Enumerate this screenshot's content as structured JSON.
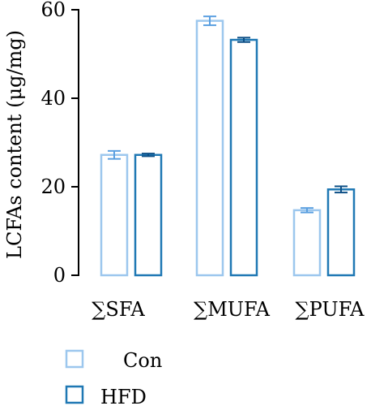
{
  "chart_data": {
    "type": "bar",
    "ylabel": "LCFAs content (μg/mg)",
    "xlabel": "",
    "ylim": [
      0,
      60
    ],
    "yticks": [
      0,
      20,
      40,
      60
    ],
    "categories": [
      "∑SFA",
      "∑MUFA",
      "∑PUFA"
    ],
    "series": [
      {
        "name": "Con",
        "values": [
          27.2,
          57.5,
          14.7
        ],
        "errors": [
          0.9,
          1.0,
          0.5
        ],
        "color": "#9cc7ee"
      },
      {
        "name": "HFD",
        "values": [
          27.2,
          53.2,
          19.4
        ],
        "errors": [
          0.3,
          0.5,
          0.7
        ],
        "color": "#1f78b4"
      }
    ],
    "legend_position": "bottom-left",
    "grid": false
  },
  "colors": {
    "con_edge": "#9cc7ee",
    "hfd_edge": "#1f78b4",
    "con_err": "#5a9fe0",
    "hfd_err": "#0d4f86"
  }
}
